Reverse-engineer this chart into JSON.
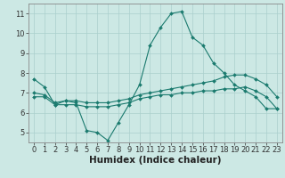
{
  "xlabel": "Humidex (Indice chaleur)",
  "background_color": "#cce8e4",
  "grid_color": "#aacfcc",
  "line_color": "#1a7a6e",
  "spine_color": "#888888",
  "xlim": [
    -0.5,
    23.5
  ],
  "ylim": [
    4.5,
    11.5
  ],
  "yticks": [
    5,
    6,
    7,
    8,
    9,
    10,
    11
  ],
  "xticks": [
    0,
    1,
    2,
    3,
    4,
    5,
    6,
    7,
    8,
    9,
    10,
    11,
    12,
    13,
    14,
    15,
    16,
    17,
    18,
    19,
    20,
    21,
    22,
    23
  ],
  "series1_x": [
    0,
    1,
    2,
    3,
    4,
    5,
    6,
    7,
    8,
    9,
    10,
    11,
    12,
    13,
    14,
    15,
    16,
    17,
    18,
    19,
    20,
    21,
    22,
    23
  ],
  "series1_y": [
    7.7,
    7.3,
    6.4,
    6.6,
    6.5,
    5.1,
    5.0,
    4.6,
    5.5,
    6.4,
    7.4,
    9.4,
    10.3,
    11.0,
    11.1,
    9.8,
    9.4,
    8.5,
    8.0,
    7.4,
    7.1,
    6.8,
    6.2,
    6.2
  ],
  "series2_x": [
    0,
    1,
    2,
    3,
    4,
    5,
    6,
    7,
    8,
    9,
    10,
    11,
    12,
    13,
    14,
    15,
    16,
    17,
    18,
    19,
    20,
    21,
    22,
    23
  ],
  "series2_y": [
    7.0,
    6.9,
    6.5,
    6.6,
    6.6,
    6.5,
    6.5,
    6.5,
    6.6,
    6.7,
    6.9,
    7.0,
    7.1,
    7.2,
    7.3,
    7.4,
    7.5,
    7.6,
    7.8,
    7.9,
    7.9,
    7.7,
    7.4,
    6.8
  ],
  "series3_x": [
    0,
    1,
    2,
    3,
    4,
    5,
    6,
    7,
    8,
    9,
    10,
    11,
    12,
    13,
    14,
    15,
    16,
    17,
    18,
    19,
    20,
    21,
    22,
    23
  ],
  "series3_y": [
    6.8,
    6.8,
    6.4,
    6.4,
    6.4,
    6.3,
    6.3,
    6.3,
    6.4,
    6.5,
    6.7,
    6.8,
    6.9,
    6.9,
    7.0,
    7.0,
    7.1,
    7.1,
    7.2,
    7.2,
    7.3,
    7.1,
    6.8,
    6.2
  ],
  "tick_fontsize": 6.0,
  "label_fontsize": 7.5,
  "marker_size": 2.0,
  "line_width": 0.8
}
